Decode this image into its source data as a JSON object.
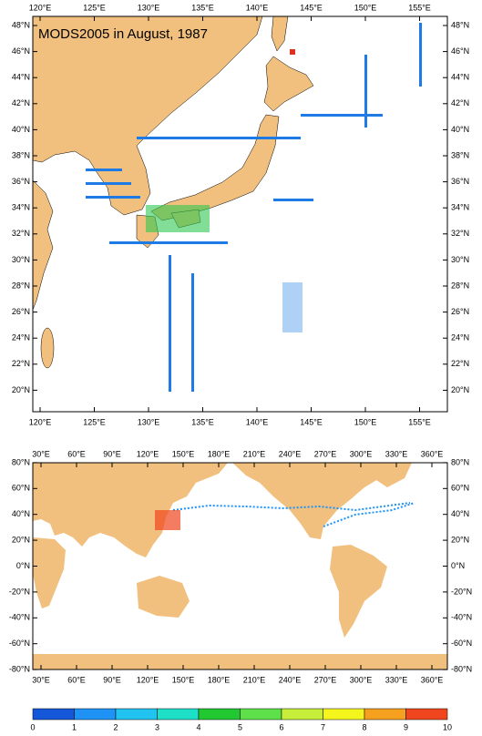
{
  "top_map": {
    "title": "MODS2005 in August, 1987",
    "lon_ticks": [
      {
        "value": 120,
        "label": "120°E"
      },
      {
        "value": 125,
        "label": "125°E"
      },
      {
        "value": 130,
        "label": "130°E"
      },
      {
        "value": 135,
        "label": "135°E"
      },
      {
        "value": 140,
        "label": "140°E"
      },
      {
        "value": 145,
        "label": "145°E"
      },
      {
        "value": 150,
        "label": "150°E"
      },
      {
        "value": 155,
        "label": "155°E"
      }
    ],
    "lat_ticks": [
      {
        "value": 48,
        "label": "48°N"
      },
      {
        "value": 46,
        "label": "46°N"
      },
      {
        "value": 44,
        "label": "44°N"
      },
      {
        "value": 42,
        "label": "42°N"
      },
      {
        "value": 40,
        "label": "40°N"
      },
      {
        "value": 38,
        "label": "38°N"
      },
      {
        "value": 36,
        "label": "36°N"
      },
      {
        "value": 34,
        "label": "34°N"
      },
      {
        "value": 32,
        "label": "32°N"
      },
      {
        "value": 30,
        "label": "30°N"
      },
      {
        "value": 28,
        "label": "28°N"
      },
      {
        "value": 26,
        "label": "26°N"
      },
      {
        "value": 24,
        "label": "24°N"
      },
      {
        "value": 22,
        "label": "22°N"
      },
      {
        "value": 20,
        "label": "20°N"
      }
    ]
  },
  "bottom_map": {
    "lon_ticks": [
      {
        "value": 30,
        "label": "30°E"
      },
      {
        "value": 60,
        "label": "60°E"
      },
      {
        "value": 90,
        "label": "90°E"
      },
      {
        "value": 120,
        "label": "120°E"
      },
      {
        "value": 150,
        "label": "150°E"
      },
      {
        "value": 180,
        "label": "180°E"
      },
      {
        "value": 210,
        "label": "210°E"
      },
      {
        "value": 240,
        "label": "240°E"
      },
      {
        "value": 270,
        "label": "270°E"
      },
      {
        "value": 300,
        "label": "300°E"
      },
      {
        "value": 330,
        "label": "330°E"
      },
      {
        "value": 360,
        "label": "360°E"
      }
    ],
    "lat_ticks": [
      {
        "value": 80,
        "label": "80°N"
      },
      {
        "value": 60,
        "label": "60°N"
      },
      {
        "value": 40,
        "label": "40°N"
      },
      {
        "value": 20,
        "label": "20°N"
      },
      {
        "value": 0,
        "label": "0°N"
      },
      {
        "value": -20,
        "label": "-20°N"
      },
      {
        "value": -40,
        "label": "-40°N"
      },
      {
        "value": -60,
        "label": "-60°N"
      },
      {
        "value": -80,
        "label": "-80°N"
      }
    ]
  },
  "colorbar": {
    "ticks": [
      0,
      1,
      2,
      3,
      4,
      5,
      6,
      7,
      8,
      9,
      10
    ],
    "colors": [
      "#1457d8",
      "#1e93f5",
      "#22c3f0",
      "#1ee0c8",
      "#22c832",
      "#5ee04a",
      "#c8ee3c",
      "#f5f51e",
      "#f5a01e",
      "#f0461e"
    ]
  }
}
